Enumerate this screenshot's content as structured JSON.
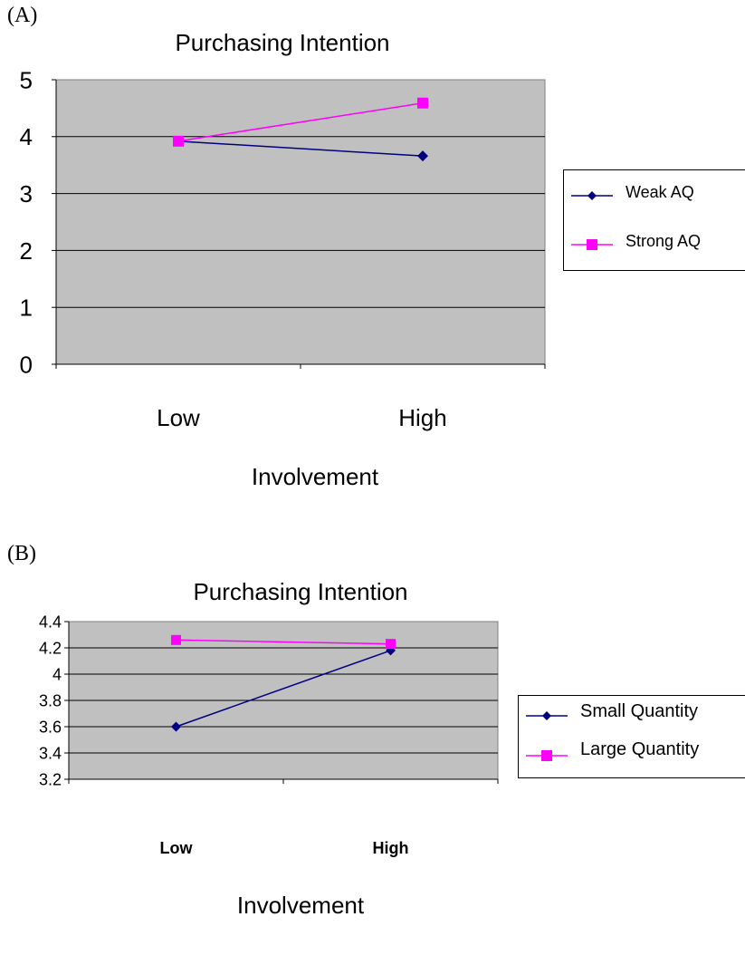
{
  "chart_data": [
    {
      "panel_label": "(A)",
      "type": "line",
      "title": "Purchasing Intention",
      "xlabel": "Involvement",
      "ylabel": "",
      "categories": [
        "Low",
        "High"
      ],
      "ylim": [
        0,
        5
      ],
      "yticks": [
        "0",
        "1",
        "2",
        "3",
        "4",
        "5"
      ],
      "grid": true,
      "legend_position": "right",
      "series": [
        {
          "name": "Weak AQ",
          "values": [
            3.92,
            3.66
          ],
          "color": "#000080",
          "marker": "diamond"
        },
        {
          "name": "Strong AQ",
          "values": [
            3.92,
            4.59
          ],
          "color": "#ff00ff",
          "marker": "square"
        }
      ]
    },
    {
      "panel_label": "(B)",
      "type": "line",
      "title": "Purchasing Intention",
      "xlabel": "Involvement",
      "ylabel": "",
      "categories": [
        "Low",
        "High"
      ],
      "ylim": [
        3.2,
        4.4
      ],
      "yticks": [
        "3.2",
        "3.4",
        "3.6",
        "3.8",
        "4",
        "4.2",
        "4.4"
      ],
      "grid": true,
      "legend_position": "right",
      "series": [
        {
          "name": "Small Quantity",
          "values": [
            3.6,
            4.18
          ],
          "color": "#000080",
          "marker": "diamond"
        },
        {
          "name": "Large Quantity",
          "values": [
            4.26,
            4.23
          ],
          "color": "#ff00ff",
          "marker": "square"
        }
      ]
    }
  ]
}
